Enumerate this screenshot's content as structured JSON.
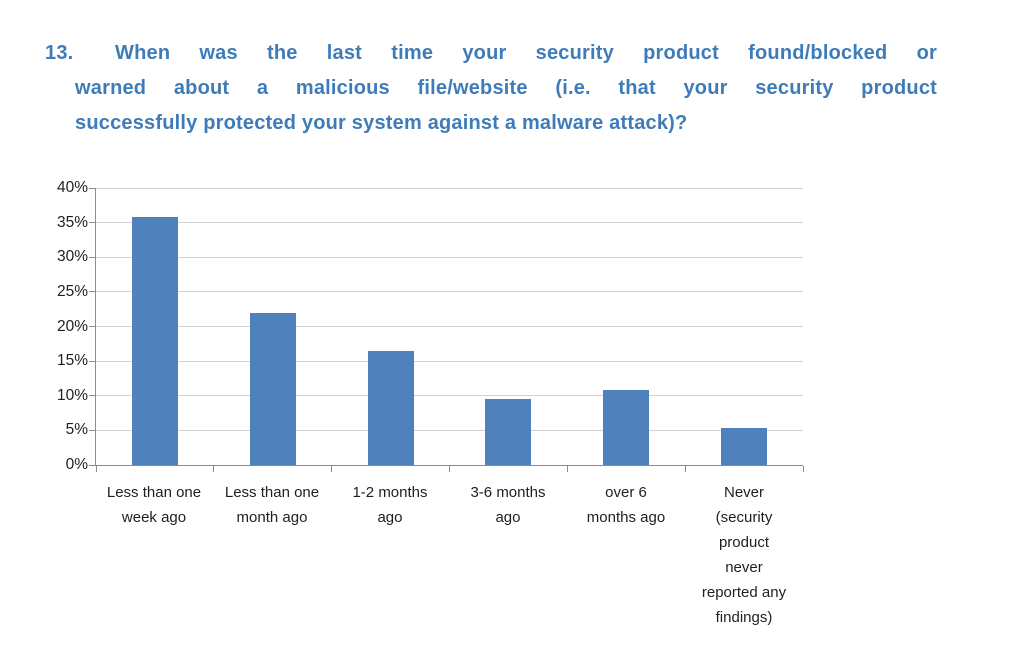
{
  "question": {
    "number": "13.",
    "text": "When was the last time your security product found/blocked or warned about a malicious file/website (i.e. that your security product successfully protected your system against a malware attack)?",
    "lines": [
      "When was the last time your security product found/blocked or",
      "warned about a malicious file/website (i.e. that your security product",
      "successfully protected your system against a malware attack)?"
    ]
  },
  "colors": {
    "question_text": "#3E7CB9"
  },
  "chart_data": {
    "type": "bar",
    "title": "",
    "xlabel": "",
    "ylabel": "",
    "categories": [
      "Less than one week ago",
      "Less than one month ago",
      "1-2 months ago",
      "3-6 months ago",
      "over 6 months ago",
      "Never (security product never reported any findings)"
    ],
    "values": [
      35.8,
      22,
      16.4,
      9.5,
      10.9,
      5.3
    ],
    "unit": "%",
    "ylim": [
      0,
      40
    ],
    "ytick_step": 5,
    "ytick_labels": [
      "0%",
      "5%",
      "10%",
      "15%",
      "20%",
      "25%",
      "30%",
      "35%",
      "40%"
    ],
    "grid": true,
    "legend": "none",
    "bar_color": "#4F81BD",
    "gridline_color": "#D2D2D2",
    "axis_color": "#8C8C8C",
    "category_label_lines": [
      [
        "Less than one",
        "week ago"
      ],
      [
        "Less than one",
        "month ago"
      ],
      [
        "1-2 months",
        "ago"
      ],
      [
        "3-6 months",
        "ago"
      ],
      [
        "over 6",
        "months ago"
      ],
      [
        "Never",
        "(security",
        "product",
        "never",
        "reported any",
        "findings)"
      ]
    ]
  }
}
